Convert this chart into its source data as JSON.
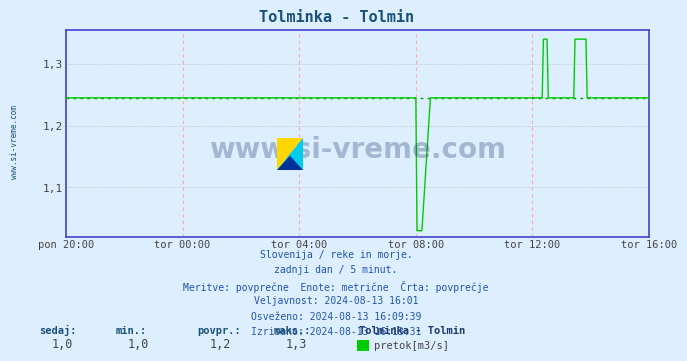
{
  "title": "Tolminka - Tolmin",
  "title_color": "#1a5276",
  "bg_color": "#ddeeff",
  "plot_bg_color": "#ddeeff",
  "line_color": "#00cc00",
  "avg_line_color": "#009900",
  "avg_value": 1.245,
  "ylim": [
    1.02,
    1.355
  ],
  "yticks": [
    1.1,
    1.2,
    1.3
  ],
  "x_tick_labels": [
    "pon 20:00",
    "tor 00:00",
    "tor 04:00",
    "tor 08:00",
    "tor 12:00",
    "tor 16:00"
  ],
  "x_tick_positions": [
    0,
    96,
    192,
    288,
    384,
    480
  ],
  "total_points": 481,
  "footer_lines": [
    "Slovenija / reke in morje.",
    "zadnji dan / 5 minut.",
    "Meritve: povprečne  Enote: metrične  Črta: povprečje",
    "Veljavnost: 2024-08-13 16:01",
    "Osveženo: 2024-08-13 16:09:39",
    "Izrisano: 2024-08-13 16:13:31"
  ],
  "stats_labels": [
    "sedaj:",
    "min.:",
    "povpr.:",
    "maks.:"
  ],
  "stats_values": [
    "1,0",
    "1,0",
    "1,2",
    "1,3"
  ],
  "station_name": "Tolminka - Tolmin",
  "legend_label": "pretok[m3/s]",
  "watermark": "www.si-vreme.com",
  "watermark_color": "#1a3a6b",
  "left_label": "www.si-vreme.com",
  "left_label_color": "#1a5276",
  "grid_h_color": "#bbbbbb",
  "grid_v_color": "#ffaaaa",
  "spine_color": "#4444cc",
  "bottom_spine_color": "#4444cc",
  "axis_label_color": "#444444",
  "footer_color": "#2255aa",
  "stats_label_color": "#1a5276",
  "stats_value_color": "#444444"
}
